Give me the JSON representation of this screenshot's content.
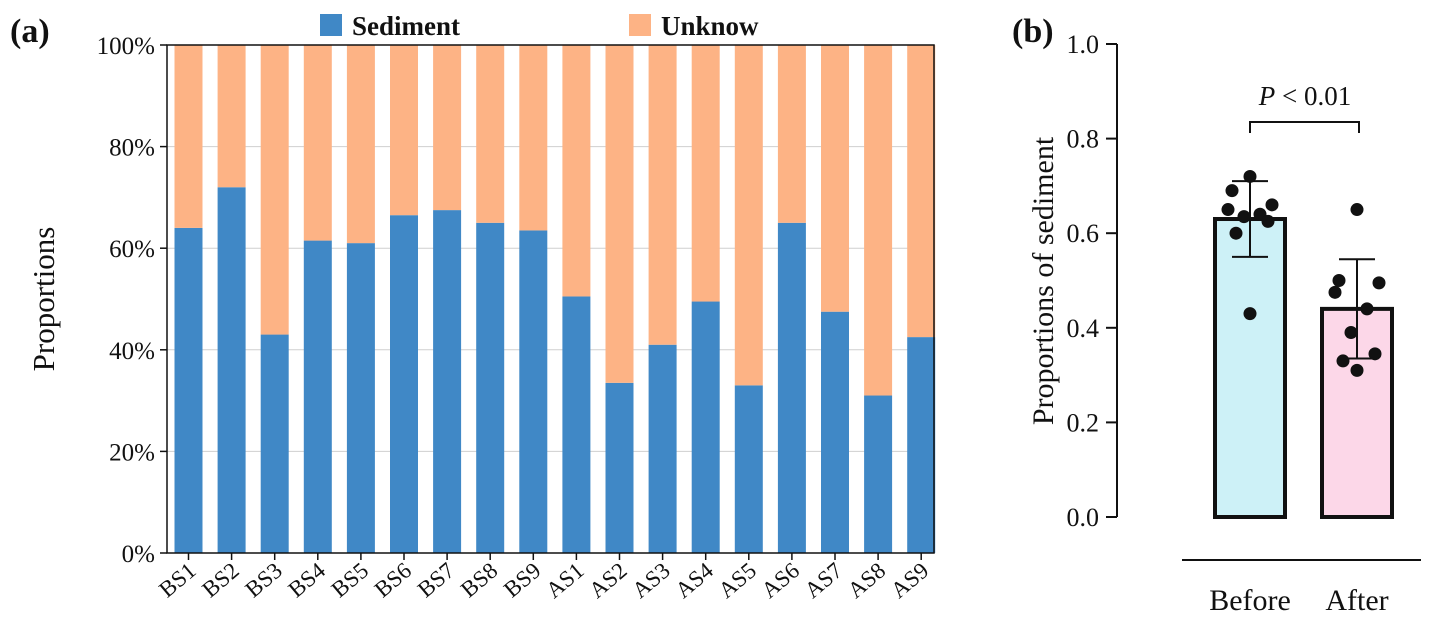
{
  "panel_a": {
    "label": "(a)",
    "legend": [
      {
        "name": "Sediment",
        "color": "#4088c6"
      },
      {
        "name": "Unknow",
        "color": "#fdb385"
      }
    ]
  },
  "panel_b": {
    "label": "(b)",
    "annotation_italic": "P",
    "annotation_rest": " < 0.01"
  },
  "chart_data": [
    {
      "type": "bar",
      "stacked": true,
      "categories": [
        "BS1",
        "BS2",
        "BS3",
        "BS4",
        "BS5",
        "BS6",
        "BS7",
        "BS8",
        "BS9",
        "AS1",
        "AS2",
        "AS3",
        "AS4",
        "AS5",
        "AS6",
        "AS7",
        "AS8",
        "AS9"
      ],
      "series": [
        {
          "name": "Sediment",
          "color": "#4088c6",
          "values": [
            64,
            72,
            43,
            61.5,
            61,
            66.5,
            67.5,
            65,
            63.5,
            50.5,
            33.5,
            41,
            49.5,
            33,
            65,
            47.5,
            31,
            42.5
          ]
        },
        {
          "name": "Unknow",
          "color": "#fdb385",
          "values": [
            36,
            28,
            57,
            38.5,
            39,
            33.5,
            32.5,
            35,
            36.5,
            49.5,
            66.5,
            59,
            50.5,
            67,
            35,
            52.5,
            69,
            57.5
          ]
        }
      ],
      "xlabel": "",
      "ylabel": "Proportions",
      "ylim": [
        0,
        100
      ],
      "yticks": [
        "0%",
        "20%",
        "40%",
        "60%",
        "80%",
        "100%"
      ],
      "grid": true,
      "legend_position": "top"
    },
    {
      "type": "bar",
      "categories": [
        "Before",
        "After"
      ],
      "values": [
        0.63,
        0.44
      ],
      "error": [
        0.08,
        0.105
      ],
      "colors": [
        "#cdf1f7",
        "#fcd7e8"
      ],
      "points": [
        [
          0.72,
          0.69,
          0.66,
          0.65,
          0.64,
          0.635,
          0.625,
          0.6,
          0.43
        ],
        [
          0.65,
          0.5,
          0.495,
          0.475,
          0.44,
          0.39,
          0.345,
          0.33,
          0.31
        ]
      ],
      "xlabel": "",
      "ylabel": "Proportions of sediment",
      "ylim": [
        0,
        1
      ],
      "yticks": [
        "0.0",
        "0.2",
        "0.4",
        "0.6",
        "0.8",
        "1.0"
      ],
      "grid": false
    }
  ]
}
